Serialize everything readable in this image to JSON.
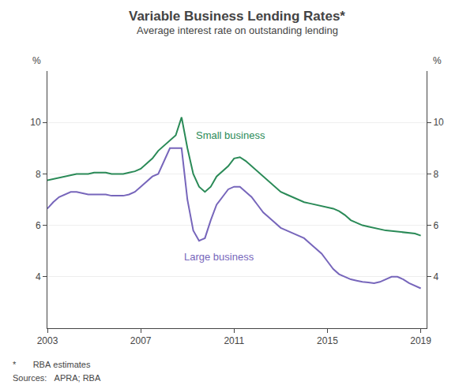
{
  "chart_data": {
    "type": "line",
    "title": "Variable Business Lending Rates*",
    "subtitle": "Average interest rate on outstanding lending",
    "ylabel": "%",
    "y2label": "%",
    "footnotes": [
      "*       RBA estimates",
      "Sources:   APRA; RBA"
    ],
    "xlim": [
      2003.0,
      2019.25
    ],
    "xticks": [
      2003,
      2007,
      2011,
      2015,
      2019
    ],
    "ylim": [
      2,
      12
    ],
    "yticks": [
      4,
      6,
      8,
      10
    ],
    "y2lim": [
      2,
      12
    ],
    "y2ticks": [
      4,
      6,
      8,
      10
    ],
    "grid": true,
    "x": [
      2003.0,
      2003.25,
      2003.5,
      2003.75,
      2004.0,
      2004.25,
      2004.5,
      2004.75,
      2005.0,
      2005.25,
      2005.5,
      2005.75,
      2006.0,
      2006.25,
      2006.5,
      2006.75,
      2007.0,
      2007.25,
      2007.5,
      2007.75,
      2008.0,
      2008.25,
      2008.5,
      2008.75,
      2009.0,
      2009.25,
      2009.5,
      2009.75,
      2010.0,
      2010.25,
      2010.5,
      2010.75,
      2011.0,
      2011.25,
      2011.5,
      2011.75,
      2012.0,
      2012.25,
      2012.5,
      2012.75,
      2013.0,
      2013.25,
      2013.5,
      2013.75,
      2014.0,
      2014.25,
      2014.5,
      2014.75,
      2015.0,
      2015.25,
      2015.5,
      2015.75,
      2016.0,
      2016.25,
      2016.5,
      2016.75,
      2017.0,
      2017.25,
      2017.5,
      2017.75,
      2018.0,
      2018.25,
      2018.5,
      2018.75,
      2019.0
    ],
    "series": [
      {
        "name": "Small business",
        "color": "#2a8a57",
        "values": [
          7.75,
          7.8,
          7.85,
          7.9,
          7.95,
          8.0,
          8.0,
          8.0,
          8.05,
          8.05,
          8.05,
          8.0,
          8.0,
          8.0,
          8.05,
          8.1,
          8.2,
          8.4,
          8.6,
          8.9,
          9.1,
          9.3,
          9.5,
          10.2,
          9.0,
          8.0,
          7.5,
          7.3,
          7.5,
          7.9,
          8.1,
          8.3,
          8.6,
          8.65,
          8.5,
          8.3,
          8.1,
          7.9,
          7.7,
          7.5,
          7.3,
          7.2,
          7.1,
          7.0,
          6.9,
          6.85,
          6.8,
          6.75,
          6.7,
          6.65,
          6.55,
          6.4,
          6.2,
          6.1,
          6.0,
          5.95,
          5.9,
          5.85,
          5.8,
          5.78,
          5.75,
          5.72,
          5.7,
          5.68,
          5.6
        ]
      },
      {
        "name": "Large business",
        "color": "#7766bb",
        "values": [
          6.65,
          6.9,
          7.1,
          7.2,
          7.3,
          7.3,
          7.25,
          7.2,
          7.2,
          7.2,
          7.2,
          7.15,
          7.15,
          7.15,
          7.2,
          7.3,
          7.5,
          7.7,
          7.9,
          8.0,
          8.5,
          9.0,
          9.0,
          9.0,
          7.0,
          5.8,
          5.4,
          5.5,
          6.2,
          6.8,
          7.1,
          7.4,
          7.5,
          7.5,
          7.3,
          7.1,
          6.8,
          6.5,
          6.3,
          6.1,
          5.9,
          5.8,
          5.7,
          5.6,
          5.5,
          5.3,
          5.1,
          4.9,
          4.6,
          4.3,
          4.1,
          4.0,
          3.9,
          3.85,
          3.8,
          3.78,
          3.75,
          3.8,
          3.9,
          4.0,
          4.0,
          3.9,
          3.75,
          3.65,
          3.55
        ]
      }
    ],
    "annotations": [
      {
        "text": "Small business",
        "x": 2009.3,
        "y": 9.2
      },
      {
        "text": "Large business",
        "x": 2008.8,
        "y": 4.5
      }
    ]
  }
}
